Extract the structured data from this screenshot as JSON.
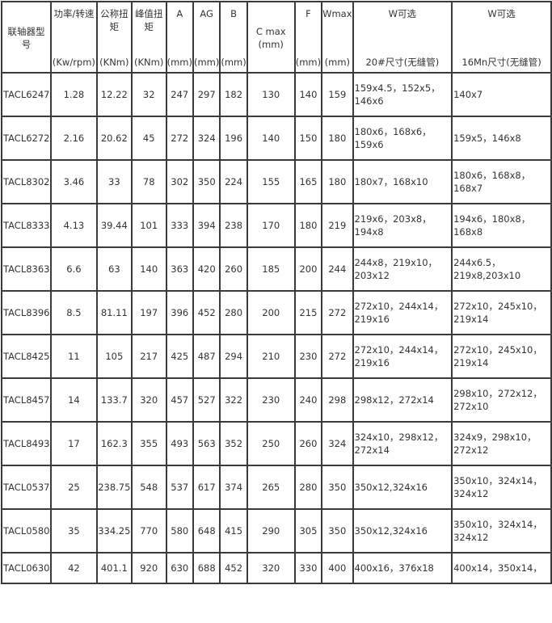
{
  "table": {
    "headers": [
      {
        "top": "",
        "bottom": "联轴器型\n号",
        "mode": "mid"
      },
      {
        "top": "功率/转速",
        "bottom": "(Kw/rpm)"
      },
      {
        "top": "公称扭\n矩",
        "bottom": "(KNm)"
      },
      {
        "top": "峰值扭\n矩",
        "bottom": "(KNm)"
      },
      {
        "top": "A",
        "bottom": "(mm)"
      },
      {
        "top": "AG",
        "bottom": "(mm)"
      },
      {
        "top": "B",
        "bottom": "(mm)"
      },
      {
        "top": "C max\n(mm)",
        "bottom": "",
        "mode": "mid"
      },
      {
        "top": "F",
        "bottom": "(mm)"
      },
      {
        "top": "Wmax",
        "bottom": "(mm)"
      },
      {
        "top": "W可选",
        "bottom": "20#尺寸(无缝管)"
      },
      {
        "top": "W可选",
        "bottom": "16Mn尺寸(无缝管)"
      }
    ],
    "rows": [
      [
        "TACL6247",
        "1.28",
        "12.22",
        "32",
        "247",
        "297",
        "182",
        "130",
        "140",
        "159",
        "159x4.5，152x5，\n146x6",
        "140x7"
      ],
      [
        "TACL6272",
        "2.16",
        "20.62",
        "45",
        "272",
        "324",
        "196",
        "140",
        "150",
        "180",
        "180x6，168x6，\n159x6",
        "159x5，146x8"
      ],
      [
        "TACL8302",
        "3.46",
        "33",
        "78",
        "302",
        "350",
        "224",
        "155",
        "165",
        "180",
        "180x7，168x10",
        "180x6，168x8，\n168x7"
      ],
      [
        "TACL8333",
        "4.13",
        "39.44",
        "101",
        "333",
        "394",
        "238",
        "170",
        "180",
        "219",
        "219x6，203x8，\n194x8",
        "194x6，180x8，\n168x8"
      ],
      [
        "TACL8363",
        "6.6",
        "63",
        "140",
        "363",
        "420",
        "260",
        "185",
        "200",
        "244",
        "244x8，219x10，\n203x12",
        "244x6.5，\n219x8,203x10"
      ],
      [
        "TACL8396",
        "8.5",
        "81.11",
        "197",
        "396",
        "452",
        "280",
        "200",
        "215",
        "272",
        "272x10，244x14，\n219x16",
        "272x10，245x10，\n219x14"
      ],
      [
        "TACL8425",
        "11",
        "105",
        "217",
        "425",
        "487",
        "294",
        "210",
        "230",
        "272",
        "272x10，244x14，\n219x16",
        "272x10，245x10，\n219x14"
      ],
      [
        "TACL8457",
        "14",
        "133.7",
        "320",
        "457",
        "527",
        "322",
        "230",
        "240",
        "298",
        "298x12，272x14",
        "298x10，272x12，\n272x10"
      ],
      [
        "TACL8493",
        "17",
        "162.3",
        "355",
        "493",
        "563",
        "352",
        "250",
        "260",
        "324",
        "324x10，298x12，\n272x14",
        "324x9，298x10，\n272x12"
      ],
      [
        "TACL0537",
        "25",
        "238.75",
        "548",
        "537",
        "617",
        "374",
        "265",
        "280",
        "350",
        "350x12,324x16",
        "350x10，324x14，\n324x12"
      ],
      [
        "TACL0580",
        "35",
        "334.25",
        "770",
        "580",
        "648",
        "415",
        "290",
        "305",
        "350",
        "350x12,324x16",
        "350x10，324x14，\n324x12"
      ],
      [
        "TACL0630",
        "42",
        "401.1",
        "920",
        "630",
        "688",
        "452",
        "320",
        "330",
        "400",
        "400x16，376x18",
        "400x14，350x14，"
      ]
    ]
  }
}
